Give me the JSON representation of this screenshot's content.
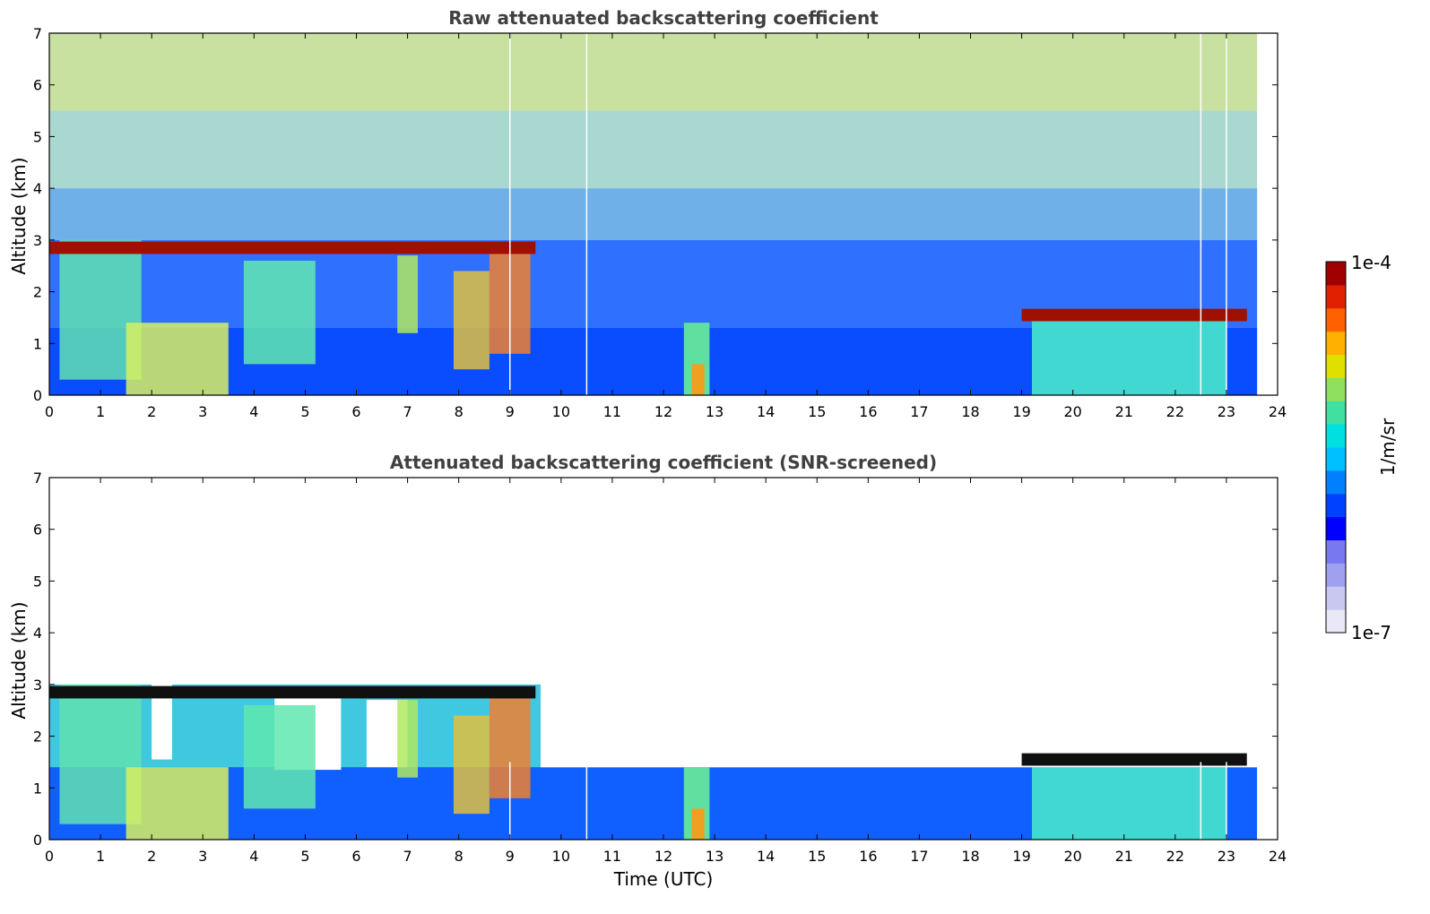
{
  "chart_data": [
    {
      "type": "heatmap",
      "title": "Raw attenuated backscattering coefficient",
      "xlabel": "",
      "ylabel": "Altitude (km)",
      "xlim": [
        0,
        24
      ],
      "ylim": [
        0,
        7
      ],
      "xticks": [
        "0",
        "1",
        "2",
        "3",
        "4",
        "5",
        "6",
        "7",
        "8",
        "9",
        "10",
        "11",
        "12",
        "13",
        "14",
        "15",
        "16",
        "17",
        "18",
        "19",
        "20",
        "21",
        "22",
        "23",
        "24"
      ],
      "yticks": [
        "0",
        "1",
        "2",
        "3",
        "4",
        "5",
        "6",
        "7"
      ],
      "data_extent_hours": [
        0,
        23.6
      ],
      "cloud_layers": [
        {
          "start": 0.0,
          "end": 9.5,
          "altitude_km": 2.85
        },
        {
          "start": 19.0,
          "end": 23.4,
          "altitude_km": 1.55
        }
      ],
      "gap_lines_hours": [
        9.0,
        10.5,
        22.5,
        23.0
      ]
    },
    {
      "type": "heatmap",
      "title": "Attenuated backscattering coefficient (SNR-screened)",
      "xlabel": "Time (UTC)",
      "ylabel": "Altitude (km)",
      "xlim": [
        0,
        24
      ],
      "ylim": [
        0,
        7
      ],
      "xticks": [
        "0",
        "1",
        "2",
        "3",
        "4",
        "5",
        "6",
        "7",
        "8",
        "9",
        "10",
        "11",
        "12",
        "13",
        "14",
        "15",
        "16",
        "17",
        "18",
        "19",
        "20",
        "21",
        "22",
        "23",
        "24"
      ],
      "yticks": [
        "0",
        "1",
        "2",
        "3",
        "4",
        "5",
        "6",
        "7"
      ],
      "data_extent_hours": [
        0,
        23.6
      ],
      "cloud_layers": [
        {
          "start": 0.0,
          "end": 9.5,
          "altitude_km": 2.85
        },
        {
          "start": 19.0,
          "end": 23.4,
          "altitude_km": 1.55
        }
      ],
      "gap_lines_hours": [
        9.0,
        10.5,
        22.5,
        23.0
      ]
    }
  ],
  "colorbar": {
    "label": "1/m/sr",
    "max_label": "1e-4",
    "min_label": "1e-7",
    "colors": [
      "#e8e8f8",
      "#c8c8f0",
      "#a0a0f0",
      "#7878f0",
      "#0000ff",
      "#0040ff",
      "#0080ff",
      "#00c0ff",
      "#00e0e0",
      "#40e0a0",
      "#90e060",
      "#e0e000",
      "#ffb000",
      "#ff6000",
      "#e02000",
      "#a00000"
    ]
  }
}
